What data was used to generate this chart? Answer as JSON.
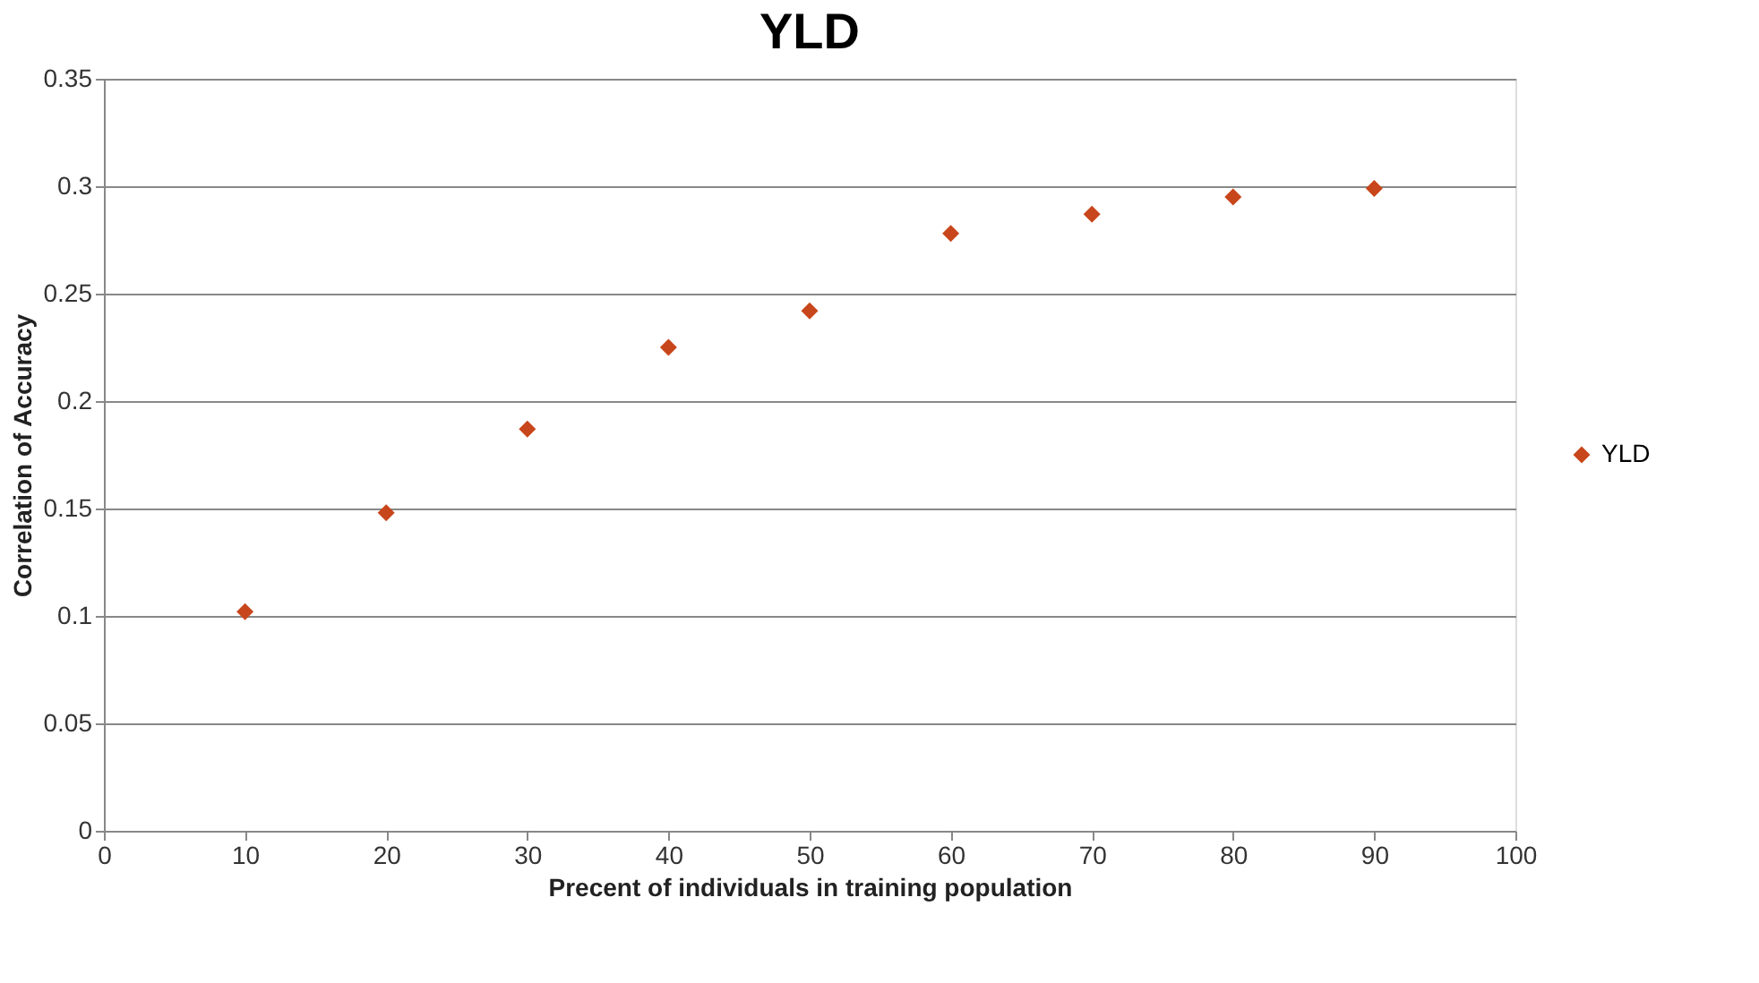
{
  "chart_data": {
    "type": "scatter",
    "title": "YLD",
    "xlabel": "Precent of individuals in training population",
    "ylabel": "Correlation of Accuracy",
    "x": [
      10,
      20,
      30,
      40,
      50,
      60,
      70,
      80,
      90
    ],
    "series": [
      {
        "name": "YLD",
        "color": "#c8461b",
        "values": [
          0.102,
          0.148,
          0.187,
          0.225,
          0.242,
          0.278,
          0.287,
          0.295,
          0.299
        ]
      }
    ],
    "xlim": [
      0,
      100
    ],
    "xticks": [
      0,
      10,
      20,
      30,
      40,
      50,
      60,
      70,
      80,
      90,
      100
    ],
    "ylim": [
      0,
      0.35
    ],
    "yticks": [
      0,
      0.05,
      0.1,
      0.15,
      0.2,
      0.25,
      0.3,
      0.35
    ],
    "grid": "y",
    "legend": "right",
    "marker": "diamond"
  }
}
